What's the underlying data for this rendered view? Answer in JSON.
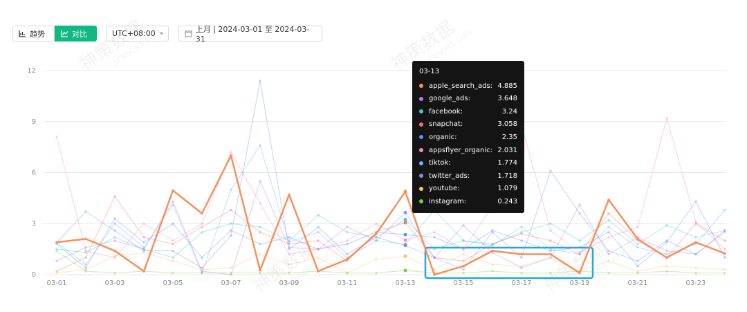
{
  "toolbar": {
    "trend": "趋势",
    "compare": "对比",
    "timezone": "UTC+08:00",
    "date_range": "上月 | 2024-03-01 至 2024-03-31"
  },
  "watermark": {
    "text": "神策数据",
    "sub": "SENSORS Data"
  },
  "chart_data": {
    "type": "line",
    "categories": [
      "03-01",
      null,
      "03-03",
      null,
      "03-05",
      null,
      "03-07",
      null,
      "03-09",
      null,
      "03-11",
      null,
      "03-13",
      null,
      "03-15",
      null,
      "03-17",
      null,
      "03-19",
      null,
      "03-21",
      null,
      "03-23",
      null
    ],
    "ylim": [
      0,
      12
    ],
    "yticks": [
      0,
      3,
      6,
      9,
      12
    ],
    "grid": true,
    "series": [
      {
        "name": "apple_search_ads",
        "color": "#f7905a",
        "emphasis": true,
        "values": [
          1.9,
          2.1,
          1.4,
          0.2,
          4.95,
          3.6,
          7.0,
          0.25,
          4.7,
          0.2,
          0.9,
          2.4,
          4.885,
          0,
          0.5,
          1.4,
          1.2,
          1.2,
          0.1,
          4.4,
          2.1,
          1.0,
          1.9,
          1.25
        ]
      },
      {
        "name": "google_ads",
        "color": "#b37feb",
        "values": [
          0.8,
          1.6,
          2.0,
          1.5,
          4.3,
          0.2,
          0,
          5.5,
          1.6,
          1.5,
          2.8,
          2.0,
          3.648,
          1.0,
          2.9,
          1.3,
          0.4,
          1.0,
          4.1,
          1.2,
          2.2,
          1.4,
          1.2,
          2.5
        ]
      },
      {
        "name": "facebook",
        "color": "#36cfc9",
        "values": [
          1.5,
          1.3,
          2.2,
          1.5,
          1.0,
          2.5,
          3.0,
          2.8,
          2.0,
          3.5,
          2.5,
          2.2,
          3.24,
          1.5,
          2.0,
          1.8,
          2.5,
          3.0,
          2.0,
          3.2,
          1.8,
          2.9,
          2.2,
          2.6
        ]
      },
      {
        "name": "snapchat",
        "color": "#ff6b6b",
        "values": [
          0.2,
          1.0,
          4.6,
          2.2,
          1.8,
          2.8,
          3.8,
          2.5,
          1.8,
          2.0,
          0.8,
          2.5,
          3.058,
          1.0,
          0.8,
          1.8,
          2.4,
          2.0,
          1.2,
          3.6,
          2.0,
          1.0,
          3.0,
          2.0
        ]
      },
      {
        "name": "organic",
        "color": "#5b8ff9",
        "values": [
          1.8,
          0.4,
          3.3,
          1.9,
          3.0,
          1.0,
          2.6,
          1.8,
          2.2,
          1.5,
          1.8,
          2.5,
          2.35,
          2.2,
          1.5,
          2.6,
          2.0,
          1.4,
          1.6,
          2.5,
          0.5,
          1.9,
          4.3,
          1.0
        ]
      },
      {
        "name": "appsflyer_organic",
        "color": "#ff85c0",
        "values": [
          8.1,
          1.4,
          1.0,
          3.0,
          2.0,
          3.0,
          7.2,
          4.2,
          1.2,
          1.5,
          2.0,
          3.0,
          2.031,
          2.5,
          1.5,
          4.0,
          8.8,
          2.6,
          1.3,
          2.2,
          2.8,
          9.2,
          3.1,
          1.5
        ]
      },
      {
        "name": "tiktok",
        "color": "#69b1ff",
        "values": [
          1.9,
          0.6,
          3.0,
          1.6,
          4.1,
          0.1,
          5.0,
          7.6,
          1.9,
          2.5,
          1.0,
          2.0,
          1.774,
          3.8,
          2.0,
          1.7,
          2.8,
          1.5,
          1.2,
          2.8,
          1.6,
          1.2,
          1.8,
          3.8
        ]
      },
      {
        "name": "twitter_ads",
        "color": "#7b8cf0",
        "values": [
          1.9,
          3.7,
          2.6,
          1.4,
          1.4,
          0.4,
          2.3,
          11.4,
          1.5,
          2.8,
          1.2,
          2.2,
          1.718,
          1.0,
          0.3,
          2.5,
          1.0,
          6.1,
          3.6,
          1.4,
          0.8,
          2.0,
          1.2,
          2.6
        ]
      },
      {
        "name": "youtube",
        "color": "#ffc069",
        "values": [
          0.1,
          0.3,
          1.1,
          1.3,
          0.8,
          0.3,
          0.4,
          1.2,
          0.6,
          1.0,
          0.1,
          0.9,
          1.079,
          0.3,
          1.2,
          0.6,
          0.5,
          1.0,
          0.2,
          0.8,
          0.2,
          0.5,
          0.4,
          0.3
        ]
      },
      {
        "name": "instagram",
        "color": "#73d13d",
        "values": [
          1.4,
          0.2,
          0.1,
          0.2,
          0.1,
          0.1,
          0.1,
          0.1,
          0.1,
          0.2,
          0.1,
          0.1,
          0.243,
          0.1,
          0.1,
          0.2,
          0.1,
          0.1,
          0.2,
          0.1,
          0.1,
          0.2,
          0.1,
          0.1
        ]
      }
    ]
  }
}
